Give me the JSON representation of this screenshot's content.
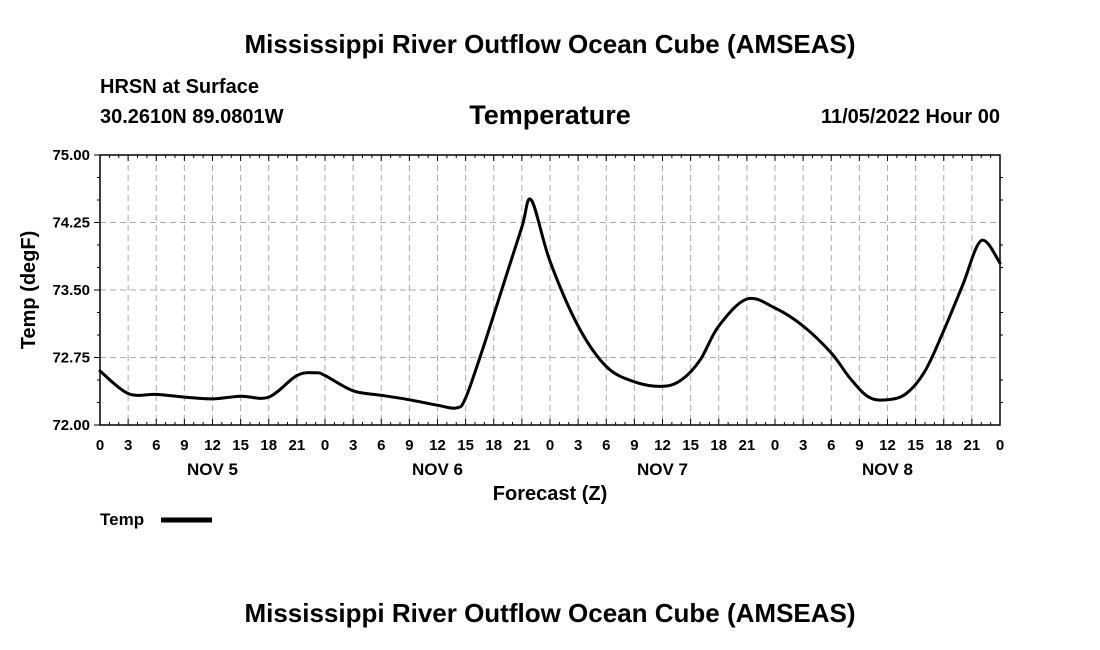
{
  "header": {
    "title": "Mississippi River Outflow Ocean Cube (AMSEAS)",
    "location": "HRSN at Surface",
    "coords": "30.2610N  89.0801W",
    "variable": "Temperature",
    "datetime": "11/05/2022 Hour 00"
  },
  "footer": {
    "title": "Mississippi River Outflow Ocean Cube (AMSEAS)"
  },
  "chart_data": {
    "type": "line",
    "title": "Temperature",
    "xlabel": "Forecast (Z)",
    "ylabel": "Temp (degF)",
    "ylim": [
      72.0,
      75.0
    ],
    "xlim": [
      0,
      96
    ],
    "yticks": [
      "72.00",
      "72.75",
      "73.50",
      "74.25",
      "75.00"
    ],
    "ytick_values": [
      72.0,
      72.75,
      73.5,
      74.25,
      75.0
    ],
    "xticks": [
      "0",
      "3",
      "6",
      "9",
      "12",
      "15",
      "18",
      "21",
      "0",
      "3",
      "6",
      "9",
      "12",
      "15",
      "18",
      "21",
      "0",
      "3",
      "6",
      "9",
      "12",
      "15",
      "18",
      "21",
      "0",
      "3",
      "6",
      "9",
      "12",
      "15",
      "18",
      "21",
      "0"
    ],
    "day_labels": [
      {
        "label": "NOV 5",
        "hour": 12
      },
      {
        "label": "NOV 6",
        "hour": 36
      },
      {
        "label": "NOV 7",
        "hour": 60
      },
      {
        "label": "NOV 8",
        "hour": 84
      }
    ],
    "grid": true,
    "legend": "bottom-left",
    "series": [
      {
        "name": "Temp",
        "x": [
          0,
          3,
          6,
          9,
          12,
          15,
          18,
          21,
          23,
          24,
          27,
          30,
          33,
          36,
          38,
          39,
          41,
          43,
          45,
          46,
          48,
          51,
          54,
          57,
          60,
          62,
          64,
          66,
          69,
          72,
          75,
          78,
          80,
          82,
          84,
          86,
          88,
          90,
          92,
          94,
          96
        ],
        "values": [
          72.6,
          72.35,
          72.34,
          72.31,
          72.29,
          72.32,
          72.31,
          72.55,
          72.58,
          72.55,
          72.38,
          72.33,
          72.28,
          72.22,
          72.19,
          72.3,
          72.9,
          73.55,
          74.2,
          74.5,
          73.82,
          73.1,
          72.65,
          72.48,
          72.43,
          72.5,
          72.72,
          73.1,
          73.4,
          73.3,
          73.1,
          72.8,
          72.52,
          72.31,
          72.28,
          72.35,
          72.6,
          73.05,
          73.55,
          74.05,
          73.8
        ]
      }
    ]
  }
}
